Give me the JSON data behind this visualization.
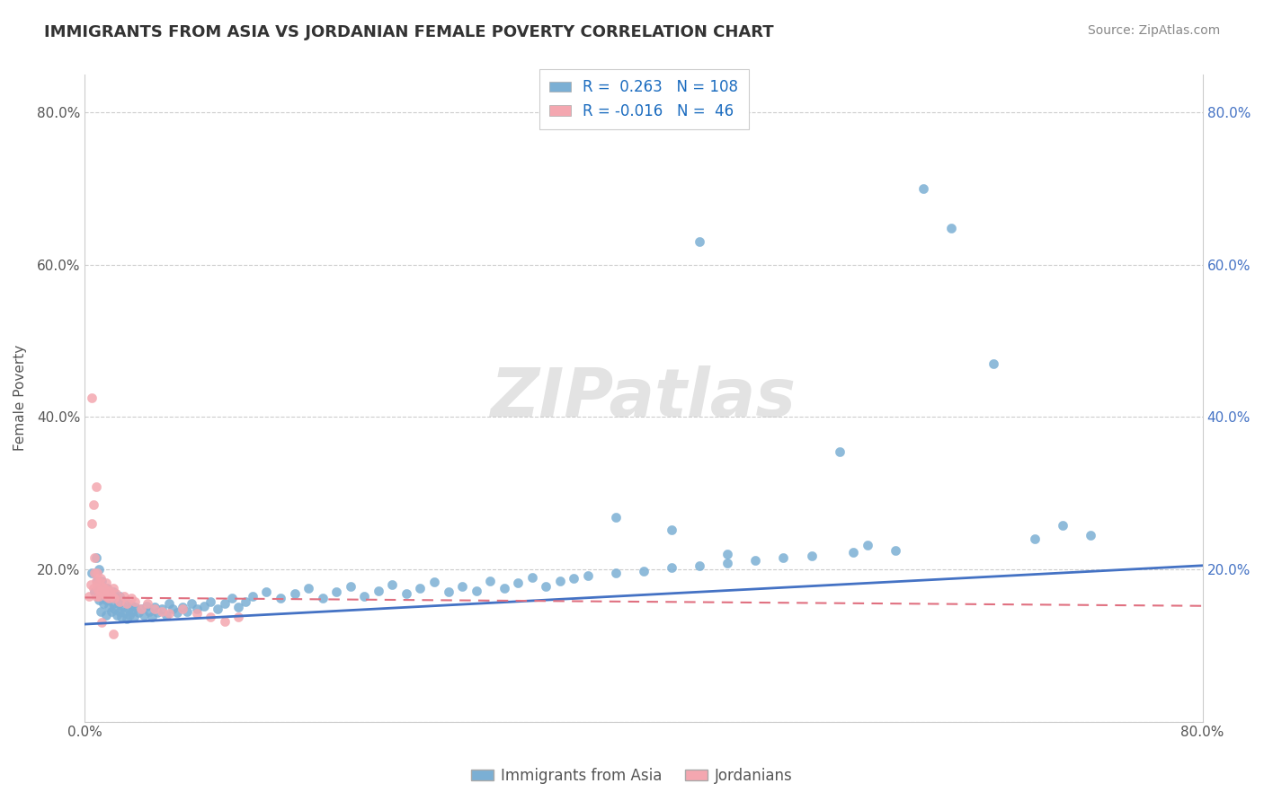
{
  "title": "IMMIGRANTS FROM ASIA VS JORDANIAN FEMALE POVERTY CORRELATION CHART",
  "source": "Source: ZipAtlas.com",
  "ylabel": "Female Poverty",
  "legend_labels": [
    "Immigrants from Asia",
    "Jordanians"
  ],
  "legend_r1": "R =  0.263",
  "legend_n1": "N = 108",
  "legend_r2": "R = -0.016",
  "legend_n2": "N =  46",
  "blue_color": "#7BAFD4",
  "pink_color": "#F4A7B0",
  "blue_line_color": "#4472C4",
  "pink_line_color": "#E07080",
  "grid_color": "#CCCCCC",
  "watermark": "ZIPatlas",
  "xlim": [
    0.0,
    0.8
  ],
  "ylim": [
    0.0,
    0.85
  ],
  "yticks": [
    0.0,
    0.2,
    0.4,
    0.6,
    0.8
  ],
  "ytick_labels": [
    "",
    "20.0%",
    "40.0%",
    "60.0%",
    "80.0%"
  ],
  "blue_scatter_x": [
    0.005,
    0.007,
    0.008,
    0.009,
    0.01,
    0.01,
    0.01,
    0.011,
    0.012,
    0.012,
    0.013,
    0.014,
    0.015,
    0.015,
    0.016,
    0.017,
    0.018,
    0.019,
    0.02,
    0.02,
    0.021,
    0.022,
    0.023,
    0.024,
    0.025,
    0.025,
    0.026,
    0.027,
    0.028,
    0.029,
    0.03,
    0.031,
    0.032,
    0.033,
    0.034,
    0.035,
    0.036,
    0.038,
    0.04,
    0.042,
    0.044,
    0.046,
    0.048,
    0.05,
    0.052,
    0.055,
    0.058,
    0.06,
    0.063,
    0.066,
    0.07,
    0.073,
    0.076,
    0.08,
    0.085,
    0.09,
    0.095,
    0.1,
    0.105,
    0.11,
    0.115,
    0.12,
    0.13,
    0.14,
    0.15,
    0.16,
    0.17,
    0.18,
    0.19,
    0.2,
    0.21,
    0.22,
    0.23,
    0.24,
    0.25,
    0.26,
    0.27,
    0.28,
    0.29,
    0.3,
    0.31,
    0.32,
    0.33,
    0.34,
    0.35,
    0.36,
    0.38,
    0.4,
    0.42,
    0.44,
    0.46,
    0.48,
    0.5,
    0.52,
    0.55,
    0.58,
    0.6,
    0.62,
    0.65,
    0.68,
    0.7,
    0.72,
    0.54,
    0.56,
    0.38,
    0.42,
    0.44,
    0.46
  ],
  "blue_scatter_y": [
    0.195,
    0.17,
    0.215,
    0.185,
    0.16,
    0.175,
    0.2,
    0.145,
    0.165,
    0.185,
    0.155,
    0.17,
    0.14,
    0.16,
    0.175,
    0.15,
    0.165,
    0.145,
    0.155,
    0.17,
    0.148,
    0.162,
    0.14,
    0.155,
    0.145,
    0.165,
    0.138,
    0.152,
    0.143,
    0.158,
    0.135,
    0.148,
    0.14,
    0.153,
    0.145,
    0.138,
    0.15,
    0.143,
    0.148,
    0.14,
    0.152,
    0.145,
    0.138,
    0.15,
    0.143,
    0.148,
    0.14,
    0.155,
    0.148,
    0.143,
    0.15,
    0.145,
    0.155,
    0.148,
    0.152,
    0.158,
    0.148,
    0.155,
    0.162,
    0.15,
    0.158,
    0.165,
    0.17,
    0.162,
    0.168,
    0.175,
    0.162,
    0.17,
    0.178,
    0.165,
    0.172,
    0.18,
    0.168,
    0.175,
    0.183,
    0.17,
    0.178,
    0.172,
    0.185,
    0.175,
    0.182,
    0.19,
    0.178,
    0.185,
    0.188,
    0.192,
    0.195,
    0.198,
    0.202,
    0.205,
    0.208,
    0.212,
    0.215,
    0.218,
    0.222,
    0.225,
    0.7,
    0.648,
    0.47,
    0.24,
    0.258,
    0.245,
    0.355,
    0.232,
    0.268,
    0.252,
    0.63,
    0.22
  ],
  "pink_scatter_x": [
    0.003,
    0.004,
    0.005,
    0.006,
    0.006,
    0.007,
    0.007,
    0.008,
    0.008,
    0.009,
    0.009,
    0.01,
    0.01,
    0.011,
    0.011,
    0.012,
    0.013,
    0.014,
    0.015,
    0.015,
    0.016,
    0.017,
    0.018,
    0.019,
    0.02,
    0.021,
    0.022,
    0.025,
    0.028,
    0.03,
    0.033,
    0.036,
    0.04,
    0.045,
    0.05,
    0.055,
    0.06,
    0.07,
    0.08,
    0.09,
    0.1,
    0.11,
    0.005,
    0.008,
    0.012,
    0.02
  ],
  "pink_scatter_y": [
    0.165,
    0.18,
    0.26,
    0.175,
    0.285,
    0.195,
    0.215,
    0.165,
    0.185,
    0.175,
    0.195,
    0.165,
    0.185,
    0.172,
    0.188,
    0.178,
    0.168,
    0.175,
    0.165,
    0.182,
    0.172,
    0.162,
    0.172,
    0.165,
    0.175,
    0.162,
    0.168,
    0.158,
    0.165,
    0.155,
    0.162,
    0.158,
    0.148,
    0.155,
    0.148,
    0.145,
    0.142,
    0.148,
    0.142,
    0.138,
    0.132,
    0.138,
    0.425,
    0.308,
    0.13,
    0.115
  ]
}
